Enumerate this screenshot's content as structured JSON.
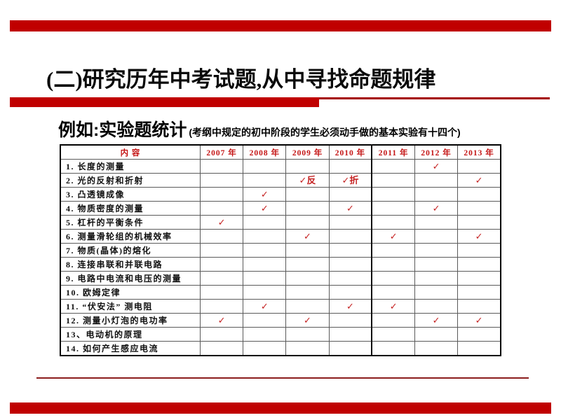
{
  "slide": {
    "title": "(二)研究历年中考试题,从中寻找命题规律",
    "subtitle": "例如:实验题统计",
    "subtitle_note": "(考纲中规定的初中阶段的学生必须动手做的基本实验有十四个)"
  },
  "colors": {
    "accent_red": "#c00000",
    "underline_thin_red": "#a40000",
    "header_text_red": "#c41414",
    "check_red": "#c52222",
    "bottom_divider_red": "#8b1d1d"
  },
  "table": {
    "columns": [
      "内 容",
      "2007 年",
      "2008 年",
      "2009 年",
      "2010 年",
      "2011 年",
      "2012 年",
      "2013 年"
    ],
    "rows": [
      {
        "label": "1. 长度的测量",
        "marks": [
          "",
          "",
          "",
          "",
          "",
          "✓",
          ""
        ]
      },
      {
        "label": "2. 光的反射和折射",
        "marks": [
          "",
          "",
          "✓反",
          "✓折",
          "",
          "",
          "✓"
        ]
      },
      {
        "label": "3. 凸透镜成像",
        "marks": [
          "",
          "✓",
          "",
          "",
          "",
          "",
          ""
        ]
      },
      {
        "label": "4. 物质密度的测量",
        "marks": [
          "",
          "✓",
          "",
          "✓",
          "",
          "✓",
          ""
        ]
      },
      {
        "label": "5. 杠杆的平衡条件",
        "marks": [
          "✓",
          "",
          "",
          "",
          "",
          "",
          ""
        ]
      },
      {
        "label": "6. 测量滑轮组的机械效率",
        "marks": [
          "",
          "",
          "✓",
          "",
          "✓",
          "",
          "✓"
        ]
      },
      {
        "label": "7. 物质(晶体)的熔化",
        "marks": [
          "",
          "",
          "",
          "",
          "",
          "",
          ""
        ]
      },
      {
        "label": "8. 连接串联和并联电路",
        "marks": [
          "",
          "",
          "",
          "",
          "",
          "",
          ""
        ]
      },
      {
        "label": "9. 电路中电流和电压的测量",
        "marks": [
          "",
          "",
          "",
          "",
          "",
          "",
          ""
        ]
      },
      {
        "label": "10. 欧姆定律",
        "marks": [
          "",
          "",
          "",
          "",
          "",
          "",
          ""
        ]
      },
      {
        "label": "11. “伏安法” 测电阻",
        "marks": [
          "",
          "✓",
          "",
          "✓",
          "✓",
          "",
          ""
        ]
      },
      {
        "label": "12. 测量小灯泡的电功率",
        "marks": [
          "✓",
          "",
          "✓",
          "",
          "",
          "✓",
          "✓"
        ]
      },
      {
        "label": "13、电动机的原理",
        "marks": [
          "",
          "",
          "",
          "",
          "",
          "",
          ""
        ]
      },
      {
        "label": "14. 如何产生感应电流",
        "marks": [
          "",
          "",
          "",
          "",
          "",
          "",
          ""
        ]
      }
    ]
  }
}
